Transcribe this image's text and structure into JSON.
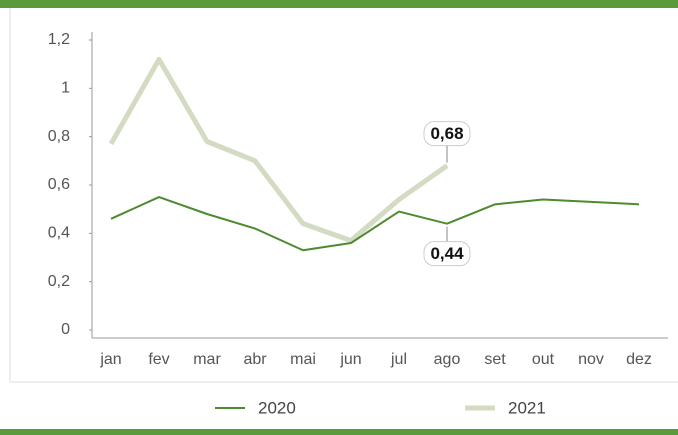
{
  "chart_data": {
    "type": "line",
    "categories": [
      "jan",
      "fev",
      "mar",
      "abr",
      "mai",
      "jun",
      "jul",
      "ago",
      "set",
      "out",
      "nov",
      "dez"
    ],
    "series": [
      {
        "name": "2020",
        "color": "#4e8a2e",
        "values": [
          0.46,
          0.55,
          0.48,
          0.42,
          0.33,
          0.36,
          0.49,
          0.44,
          0.52,
          0.54,
          0.53,
          0.52
        ],
        "value_labels": [
          null,
          null,
          null,
          null,
          null,
          null,
          null,
          "0,44",
          null,
          null,
          null,
          null
        ]
      },
      {
        "name": "2021",
        "color": "#d3dbc2",
        "values": [
          0.77,
          1.12,
          0.78,
          0.7,
          0.44,
          0.37,
          0.54,
          0.68,
          null,
          null,
          null,
          null
        ],
        "value_labels": [
          null,
          null,
          null,
          null,
          null,
          null,
          null,
          "0,68",
          null,
          null,
          null,
          null
        ]
      }
    ],
    "ylim": [
      0,
      1.2
    ],
    "yticks": [
      0,
      {
        "value": 0.2,
        "label": "0,2"
      },
      {
        "value": 0.4,
        "label": "0,4"
      },
      {
        "value": 0.6,
        "label": "0,6"
      },
      {
        "value": 0.8,
        "label": "0,8"
      },
      1,
      {
        "value": 1.2,
        "label": "1,2"
      }
    ],
    "grid": false,
    "legend": "bottom"
  }
}
